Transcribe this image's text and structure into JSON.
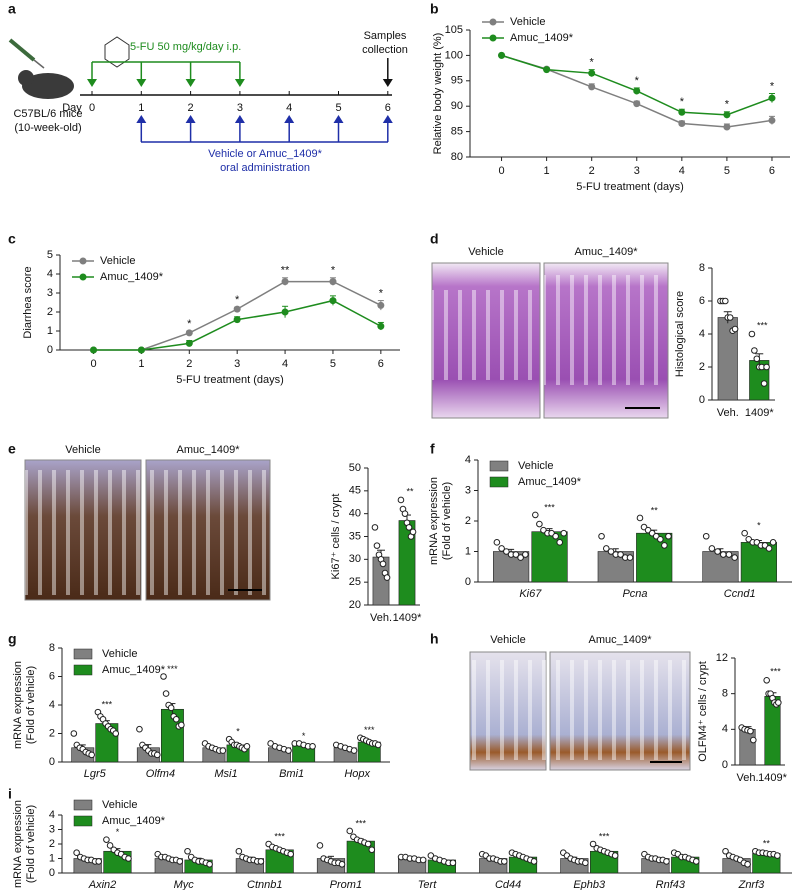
{
  "panel_letters": [
    "a",
    "b",
    "c",
    "d",
    "e",
    "f",
    "g",
    "h",
    "i"
  ],
  "schematic": {
    "drug": "5-FU 50 mg/kg/day  i.p.",
    "samples": [
      "Samples",
      "collection"
    ],
    "day_label": "Day",
    "days": [
      0,
      1,
      2,
      3,
      4,
      5,
      6
    ],
    "mouse": [
      "C57BL/6 mice",
      "(10-week-old)"
    ],
    "treatment": [
      "Vehicle or Amuc_1409*",
      "oral administration"
    ]
  },
  "images": {
    "d": [
      "Vehicle",
      "Amuc_1409*"
    ],
    "e": [
      "Vehicle",
      "Amuc_1409*"
    ],
    "h": [
      "Vehicle",
      "Amuc_1409*"
    ]
  },
  "chart_data": [
    {
      "type": "line",
      "y_label": [
        "Relative body weight (%)"
      ],
      "x_label": "5-FU treatment (days)",
      "x": [
        0,
        1,
        2,
        3,
        4,
        5,
        6
      ],
      "xlim": [
        -0.7,
        6.4
      ],
      "xticks": [
        0,
        1,
        2,
        3,
        4,
        5,
        6
      ],
      "ylim": [
        80,
        105
      ],
      "yticks": [
        80,
        85,
        90,
        95,
        100,
        105
      ],
      "legend": "upper left",
      "series": [
        {
          "name": "Vehicle",
          "color": "#7f7f7f",
          "values": [
            100,
            97.3,
            93.8,
            90.5,
            86.6,
            85.9,
            87.2
          ],
          "errors": [
            0,
            0.3,
            0.6,
            0.5,
            0.5,
            0.6,
            0.8
          ]
        },
        {
          "name": "Amuc_1409*",
          "color": "#1e8c1e",
          "values": [
            100,
            97.2,
            96.5,
            93,
            88.8,
            88.3,
            91.6
          ],
          "errors": [
            0,
            0.3,
            0.7,
            0.6,
            0.6,
            0.6,
            0.9
          ]
        }
      ],
      "annotations": [
        null,
        null,
        "*",
        "*",
        "*",
        "*",
        "*"
      ]
    },
    {
      "type": "line",
      "y_label": [
        "Diarrhea score"
      ],
      "x_label": "5-FU treatment (days)",
      "x": [
        0,
        1,
        2,
        3,
        4,
        5,
        6
      ],
      "xlim": [
        -0.7,
        6.4
      ],
      "xticks": [
        0,
        1,
        2,
        3,
        4,
        5,
        6
      ],
      "ylim": [
        0,
        5
      ],
      "yticks": [
        0,
        1,
        2,
        3,
        4,
        5
      ],
      "legend": "upper left",
      "series": [
        {
          "name": "Vehicle",
          "color": "#7f7f7f",
          "values": [
            0,
            0,
            0.9,
            2.15,
            3.6,
            3.6,
            2.35
          ],
          "errors": [
            0,
            0,
            0.1,
            0.1,
            0.2,
            0.2,
            0.25
          ]
        },
        {
          "name": "Amuc_1409*",
          "color": "#1e8c1e",
          "values": [
            0,
            0,
            0.35,
            1.6,
            2.0,
            2.6,
            1.25
          ],
          "errors": [
            0,
            0,
            0.15,
            0.15,
            0.3,
            0.25,
            0.2
          ]
        }
      ],
      "annotations": [
        null,
        null,
        "*",
        "*",
        "**",
        "*",
        "*"
      ]
    },
    {
      "type": "bar",
      "y_label": [
        "Histological score"
      ],
      "categories": [
        "Veh.",
        "1409*"
      ],
      "values": [
        5.0,
        2.4
      ],
      "errors": [
        0.35,
        0.4
      ],
      "colors": [
        "#808080",
        "#1e8c1e"
      ],
      "points": [
        [
          6,
          6,
          6,
          5,
          5,
          4.2,
          4.3
        ],
        [
          4,
          3,
          2.5,
          2,
          2,
          1,
          2
        ]
      ],
      "ylim": [
        0,
        8
      ],
      "yticks": [
        0,
        2,
        4,
        6,
        8
      ],
      "annotations": [
        null,
        "***"
      ]
    },
    {
      "type": "bar",
      "y_label": [
        "Ki67⁺ cells / crypt"
      ],
      "categories": [
        "Veh.",
        "1409*"
      ],
      "values": [
        30.5,
        38.5
      ],
      "errors": [
        1.5,
        1.2
      ],
      "colors": [
        "#808080",
        "#1e8c1e"
      ],
      "points": [
        [
          37,
          33,
          31,
          30,
          29,
          27,
          26
        ],
        [
          43,
          41,
          40,
          38,
          37,
          35,
          36
        ]
      ],
      "ylim": [
        20,
        50
      ],
      "yticks": [
        20,
        25,
        30,
        35,
        40,
        45,
        50
      ],
      "annotations": [
        null,
        "**"
      ]
    },
    {
      "type": "grouped_bar",
      "y_label": [
        "mRNA expression",
        "(Fold of vehicle)"
      ],
      "categories": [
        "Ki67",
        "Pcna",
        "Ccnd1"
      ],
      "ylim": [
        0,
        4
      ],
      "yticks": [
        0,
        1,
        2,
        3,
        4
      ],
      "legend": "upper left",
      "series": [
        {
          "name": "Vehicle",
          "color": "#808080",
          "values": [
            1,
            1,
            1
          ],
          "errors": [
            0.07,
            0.09,
            0.09
          ],
          "points": [
            [
              1.3,
              1.1,
              1,
              0.9,
              0.9,
              0.8,
              0.9
            ],
            [
              1.5,
              1.1,
              1,
              0.9,
              0.9,
              0.8,
              0.8
            ],
            [
              1.5,
              1.1,
              1,
              0.9,
              0.9,
              0.8
            ]
          ]
        },
        {
          "name": "Amuc_1409*",
          "color": "#1e8c1e",
          "values": [
            1.65,
            1.6,
            1.3
          ],
          "errors": [
            0.1,
            0.1,
            0.06
          ],
          "points": [
            [
              2.2,
              1.9,
              1.7,
              1.6,
              1.6,
              1.5,
              1.3,
              1.6
            ],
            [
              2.1,
              1.8,
              1.7,
              1.6,
              1.5,
              1.4,
              1.2,
              1.5
            ],
            [
              1.6,
              1.4,
              1.3,
              1.3,
              1.2,
              1.2,
              1.1,
              1.3
            ]
          ]
        }
      ],
      "annotations": [
        "***",
        "**",
        "*"
      ]
    },
    {
      "type": "grouped_bar",
      "y_label": [
        "mRNA expression",
        "(Fold of vehicle)"
      ],
      "categories": [
        "Lgr5",
        "Olfm4",
        "Msi1",
        "Bmi1",
        "Hopx"
      ],
      "ylim": [
        0,
        8
      ],
      "yticks": [
        0,
        2,
        4,
        6,
        8
      ],
      "legend": "upper left",
      "series": [
        {
          "name": "Vehicle",
          "color": "#808080",
          "values": [
            1,
            1,
            1,
            1,
            1
          ],
          "errors": [
            0.2,
            0.22,
            0.08,
            0.09,
            0.07
          ],
          "points": [
            [
              2,
              1.2,
              1,
              0.9,
              0.7,
              0.6,
              0.5
            ],
            [
              2.3,
              1.2,
              1,
              0.8,
              0.6,
              0.6,
              0.5
            ],
            [
              1.3,
              1.1,
              1,
              0.9,
              0.8,
              0.8
            ],
            [
              1.3,
              1.1,
              1,
              0.9,
              0.8
            ],
            [
              1.2,
              1.1,
              1,
              0.9,
              0.8
            ]
          ]
        },
        {
          "name": "Amuc_1409*",
          "color": "#1e8c1e",
          "values": [
            2.7,
            3.7,
            1.2,
            1.2,
            1.4
          ],
          "errors": [
            0.2,
            0.4,
            0.08,
            0.05,
            0.07
          ],
          "points": [
            [
              3.5,
              3.2,
              3,
              2.7,
              2.5,
              2.3,
              2.2,
              2
            ],
            [
              6,
              4.8,
              4,
              3.8,
              3.2,
              3,
              2.5,
              2.6
            ],
            [
              1.6,
              1.4,
              1.2,
              1.2,
              1.1,
              1,
              0.9,
              1.1
            ],
            [
              1.3,
              1.3,
              1.2,
              1.1,
              1.1
            ],
            [
              1.7,
              1.6,
              1.5,
              1.4,
              1.3,
              1.3,
              1.2
            ]
          ]
        }
      ],
      "annotations": [
        "***",
        "***",
        "*",
        "*",
        "***"
      ]
    },
    {
      "type": "bar",
      "y_label": [
        "OLFM4⁺ cells / crypt"
      ],
      "categories": [
        "Veh.",
        "1409*"
      ],
      "values": [
        4,
        7.7
      ],
      "errors": [
        0.3,
        0.4
      ],
      "colors": [
        "#808080",
        "#1e8c1e"
      ],
      "points": [
        [
          4.2,
          4,
          3.9,
          3.8,
          2.8
        ],
        [
          9.5,
          8,
          8,
          7.5,
          7,
          6.8,
          7
        ]
      ],
      "ylim": [
        0,
        12
      ],
      "yticks": [
        0,
        4,
        8,
        12
      ],
      "annotations": [
        null,
        "***"
      ]
    },
    {
      "type": "grouped_bar",
      "y_label": [
        "mRNA expression",
        "(Fold of vehicle)"
      ],
      "categories": [
        "Axin2",
        "Myc",
        "Ctnnb1",
        "Prom1",
        "Tert",
        "Cd44",
        "Ephb3",
        "Rnf43",
        "Znrf3"
      ],
      "ylim": [
        0,
        4
      ],
      "yticks": [
        0,
        1,
        2,
        3,
        4
      ],
      "legend": "upper left",
      "series": [
        {
          "name": "Vehicle",
          "color": "#808080",
          "values": [
            1,
            1,
            1,
            1,
            1,
            1,
            1,
            1,
            1
          ],
          "errors": [
            0.08,
            0.07,
            0.09,
            0.15,
            0.04,
            0.07,
            0.09,
            0.07,
            0.12
          ],
          "points": [
            [
              1.4,
              1.1,
              1,
              0.9,
              0.9,
              0.8,
              0.8
            ],
            [
              1.3,
              1.1,
              1.1,
              1,
              0.9,
              0.9,
              0.8
            ],
            [
              1.5,
              1.1,
              1,
              0.9,
              0.9,
              0.8,
              0.8
            ],
            [
              1.9,
              1,
              0.9,
              0.8,
              0.7,
              0.7,
              0.6
            ],
            [
              1.1,
              1.1,
              1,
              1,
              0.9,
              0.9
            ],
            [
              1.3,
              1.2,
              1,
              1,
              0.9,
              0.8,
              0.8
            ],
            [
              1.4,
              1.2,
              1,
              0.9,
              0.8,
              0.8,
              0.7
            ],
            [
              1.3,
              1.1,
              1,
              1,
              0.9,
              0.9,
              0.8
            ],
            [
              1.5,
              1.2,
              1.1,
              1,
              0.9,
              0.7,
              0.6
            ]
          ]
        },
        {
          "name": "Amuc_1409*",
          "color": "#1e8c1e",
          "values": [
            1.5,
            0.9,
            1.6,
            2.2,
            0.9,
            1.1,
            1.5,
            1.1,
            1.35
          ],
          "errors": [
            0.18,
            0.12,
            0.09,
            0.15,
            0.08,
            0.08,
            0.1,
            0.08,
            0.04
          ],
          "points": [
            [
              2.3,
              1.9,
              1.6,
              1.4,
              1.3,
              1.1,
              1
            ],
            [
              1.5,
              1.1,
              0.9,
              0.8,
              0.8,
              0.7,
              0.6
            ],
            [
              2,
              1.8,
              1.7,
              1.6,
              1.5,
              1.4,
              1.3
            ],
            [
              2.9,
              2.5,
              2.3,
              2.2,
              2.1,
              2,
              1.6
            ],
            [
              1.2,
              1,
              0.9,
              0.8,
              0.7,
              0.7
            ],
            [
              1.4,
              1.3,
              1.2,
              1.1,
              1,
              0.9,
              0.8
            ],
            [
              2,
              1.7,
              1.6,
              1.5,
              1.4,
              1.3,
              1.2
            ],
            [
              1.4,
              1.3,
              1.1,
              1.1,
              1,
              0.9,
              0.8
            ],
            [
              1.5,
              1.4,
              1.4,
              1.35,
              1.3,
              1.3,
              1.2
            ]
          ]
        }
      ],
      "annotations": [
        "*",
        null,
        "***",
        "***",
        null,
        null,
        "***",
        null,
        "**"
      ]
    }
  ]
}
